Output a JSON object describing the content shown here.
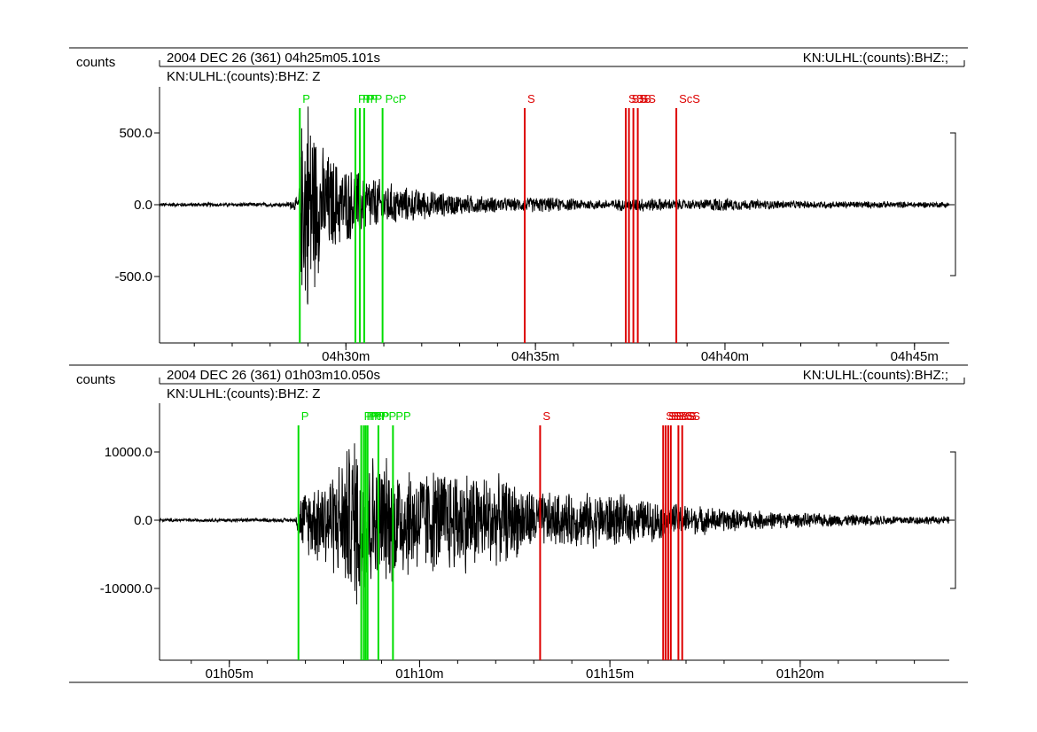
{
  "panels": [
    {
      "ylabel": "counts",
      "header": "2004 DEC 26 (361)  04h25m05.101s",
      "channel_right": "KN:ULHL:(counts):BHZ:;",
      "channel_left": "KN:ULHL:(counts):BHZ: Z"
    },
    {
      "ylabel": "counts",
      "header": "2004 DEC 26 (361)  01h03m10.050s",
      "channel_right": "KN:ULHL:(counts):BHZ:;",
      "channel_left": "KN:ULHL:(counts):BHZ: Z"
    }
  ],
  "colors": {
    "trace": "#000000",
    "p_phase": "#00dd00",
    "s_phase": "#dd0000",
    "axis": "#000000"
  },
  "chart_data": [
    {
      "type": "line",
      "title": "2004 DEC 26 (361)  04h25m05.101s",
      "ylabel": "counts",
      "x_unit": "seconds after 04h25m05.101s",
      "xlim": [
        0,
        1250
      ],
      "ylim": [
        -960,
        960
      ],
      "y_ticks": [
        500.0,
        0.0,
        -500.0
      ],
      "y_tick_labels": [
        "500.0",
        "0.0",
        "-500.0"
      ],
      "x_ticks": [
        295,
        595,
        895,
        1195
      ],
      "x_tick_labels": [
        "04h30m",
        "04h35m",
        "04h40m",
        "04h45m"
      ],
      "phases": [
        {
          "label": "P",
          "t": 222,
          "kind": "P"
        },
        {
          "label": "PP",
          "t": 310,
          "kind": "P"
        },
        {
          "label": "PP",
          "t": 317,
          "kind": "P"
        },
        {
          "label": "PP",
          "t": 324,
          "kind": "P"
        },
        {
          "label": "PcP",
          "t": 353,
          "kind": "P"
        },
        {
          "label": "S",
          "t": 578,
          "kind": "S"
        },
        {
          "label": "SS",
          "t": 738,
          "kind": "S"
        },
        {
          "label": "SS",
          "t": 743,
          "kind": "S"
        },
        {
          "label": "SS",
          "t": 750,
          "kind": "S"
        },
        {
          "label": "SS",
          "t": 757,
          "kind": "S"
        },
        {
          "label": "ScS",
          "t": 818,
          "kind": "S"
        }
      ],
      "envelope": [
        [
          0,
          0,
          15
        ],
        [
          200,
          0,
          15
        ],
        [
          220,
          0,
          60
        ],
        [
          225,
          0,
          700
        ],
        [
          235,
          0,
          890
        ],
        [
          255,
          0,
          450
        ],
        [
          290,
          0,
          300
        ],
        [
          330,
          0,
          230
        ],
        [
          380,
          0,
          140
        ],
        [
          460,
          0,
          85
        ],
        [
          560,
          0,
          50
        ],
        [
          600,
          0,
          60
        ],
        [
          700,
          0,
          35
        ],
        [
          760,
          0,
          55
        ],
        [
          850,
          0,
          35
        ],
        [
          880,
          0,
          55
        ],
        [
          930,
          0,
          40
        ],
        [
          1000,
          0,
          30
        ],
        [
          1250,
          0,
          22
        ]
      ],
      "grid": false
    },
    {
      "type": "line",
      "title": "2004 DEC 26 (361)  01h03m10.050s",
      "ylabel": "counts",
      "x_unit": "seconds after 01h03m10.050s",
      "xlim": [
        0,
        1245
      ],
      "ylim": [
        -20000,
        20000
      ],
      "y_ticks": [
        10000.0,
        0.0,
        -10000.0
      ],
      "y_tick_labels": [
        "10000.0",
        "0.0",
        "-10000.0"
      ],
      "x_ticks": [
        110,
        410,
        710,
        1010
      ],
      "x_tick_labels": [
        "01h05m",
        "01h10m",
        "01h15m",
        "01h20m"
      ],
      "phases": [
        {
          "label": "P",
          "t": 219,
          "kind": "P"
        },
        {
          "label": "PP",
          "t": 318,
          "kind": "P"
        },
        {
          "label": "PP",
          "t": 322,
          "kind": "P"
        },
        {
          "label": "PcP",
          "t": 325,
          "kind": "P"
        },
        {
          "label": "PP",
          "t": 328,
          "kind": "P"
        },
        {
          "label": "PP",
          "t": 345,
          "kind": "P"
        },
        {
          "label": "PP",
          "t": 368,
          "kind": "P"
        },
        {
          "label": "S",
          "t": 600,
          "kind": "S"
        },
        {
          "label": "SS",
          "t": 794,
          "kind": "S"
        },
        {
          "label": "SS",
          "t": 798,
          "kind": "S"
        },
        {
          "label": "SS",
          "t": 802,
          "kind": "S"
        },
        {
          "label": "ScS",
          "t": 806,
          "kind": "S"
        },
        {
          "label": "SS",
          "t": 818,
          "kind": "S"
        },
        {
          "label": "SS",
          "t": 824,
          "kind": "S"
        }
      ],
      "envelope": [
        [
          0,
          0,
          250
        ],
        [
          215,
          0,
          300
        ],
        [
          220,
          0,
          4000
        ],
        [
          250,
          0,
          7000
        ],
        [
          280,
          0,
          9000
        ],
        [
          300,
          0,
          12500
        ],
        [
          320,
          0,
          16500
        ],
        [
          335,
          0,
          11000
        ],
        [
          360,
          0,
          10000
        ],
        [
          420,
          0,
          8500
        ],
        [
          480,
          0,
          8500
        ],
        [
          550,
          0,
          6500
        ],
        [
          600,
          0,
          4500
        ],
        [
          650,
          0,
          4200
        ],
        [
          700,
          0,
          4500
        ],
        [
          760,
          0,
          3500
        ],
        [
          830,
          0,
          2500
        ],
        [
          900,
          0,
          1800
        ],
        [
          1000,
          0,
          1200
        ],
        [
          1100,
          0,
          900
        ],
        [
          1245,
          0,
          600
        ]
      ],
      "grid": false
    }
  ]
}
